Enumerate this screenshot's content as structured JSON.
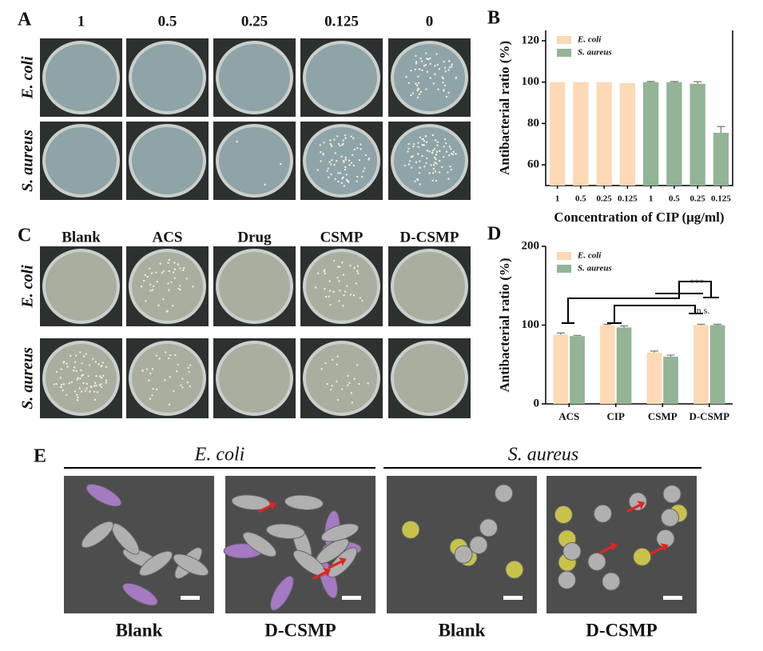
{
  "panels": {
    "A": {
      "label": "A",
      "columns": [
        "1",
        "0.5",
        "0.25",
        "0.125",
        "0"
      ],
      "rows": [
        "E. coli",
        "S. aureus"
      ]
    },
    "C": {
      "label": "C",
      "columns": [
        "Blank",
        "ACS",
        "Drug",
        "CSMP",
        "D-CSMP"
      ],
      "rows": [
        "E. coli",
        "S. aureus"
      ]
    },
    "E": {
      "label": "E",
      "groups": [
        "E. coli",
        "S. aureus"
      ],
      "columns": [
        "Blank",
        "D-CSMP",
        "Blank",
        "D-CSMP"
      ]
    }
  },
  "chart_data": [
    {
      "type": "bar",
      "label": "B",
      "barmode": "overlay",
      "categories": [
        "1",
        "0.5",
        "0.25",
        "0.125",
        "1",
        "0.5",
        "0.25",
        "0.125"
      ],
      "series": [
        {
          "name": "E. coli",
          "color": "#fdd9b5",
          "values": [
            100,
            100,
            100,
            99.5,
            null,
            null,
            null,
            null
          ]
        },
        {
          "name": "S. aureus",
          "color": "#93b495",
          "values": [
            null,
            null,
            null,
            null,
            100,
            100,
            99.2,
            75.5
          ],
          "errors": [
            null,
            null,
            null,
            null,
            0.3,
            0.3,
            1,
            3
          ]
        }
      ],
      "ylim": [
        50,
        125
      ],
      "yticks": [
        60,
        80,
        100,
        120
      ],
      "x_label": "Concentration of CIP (μg/ml)",
      "y_label": "Antibacterial ratio (%)",
      "legend": "upper left"
    },
    {
      "type": "bar",
      "label": "D",
      "barmode": "group",
      "categories": [
        "ACS",
        "CIP",
        "CSMP",
        "D-CSMP"
      ],
      "series": [
        {
          "name": "E. coli",
          "color": "#fdd9b5",
          "values": [
            88,
            100,
            65,
            100
          ],
          "errors": [
            2,
            1,
            2,
            1
          ]
        },
        {
          "name": "S. aureus",
          "color": "#93b495",
          "values": [
            86,
            97,
            60,
            100
          ],
          "errors": [
            1,
            2,
            2,
            1
          ]
        }
      ],
      "ylim": [
        0,
        200
      ],
      "yticks": [
        0,
        100,
        200
      ],
      "y_label": "Antibacterial ratio (%)",
      "legend": "upper left",
      "annotations": [
        "***",
        "n.s."
      ]
    }
  ]
}
